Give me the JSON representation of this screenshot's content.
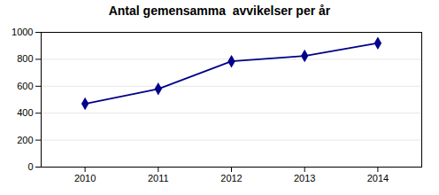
{
  "chart_data": {
    "type": "line",
    "title": "Antal gemensamma  avvikelser per år",
    "x": [
      2010,
      2011,
      2012,
      2013,
      2014
    ],
    "values": [
      470,
      580,
      785,
      825,
      920
    ],
    "color": "#00008B",
    "marker": "diamond",
    "xlim": [
      2009.4,
      2014.6
    ],
    "xticks": [
      2010,
      2011,
      2012,
      2013,
      2014
    ],
    "ylim": [
      0,
      1000
    ],
    "yticks": [
      0,
      200,
      400,
      600,
      800,
      1000
    ],
    "grid": true
  }
}
